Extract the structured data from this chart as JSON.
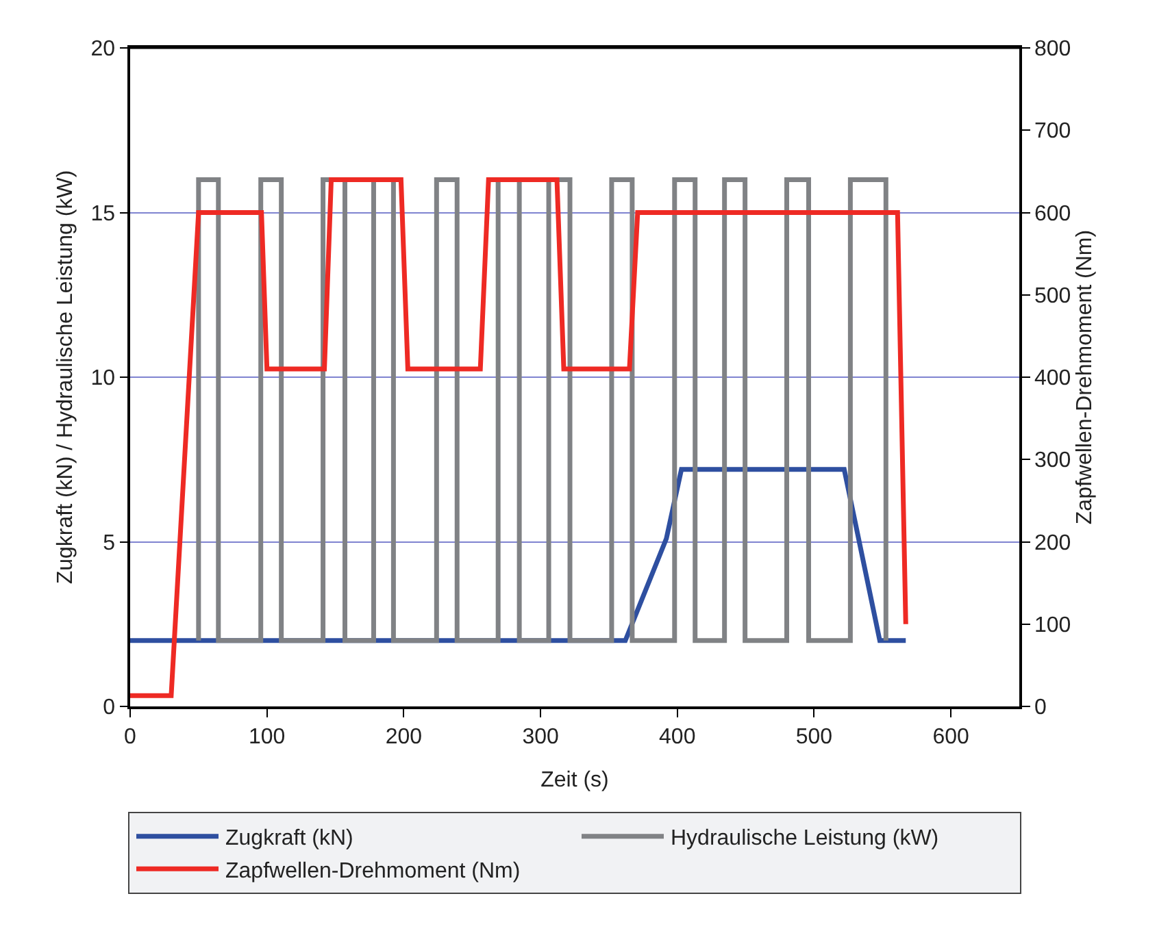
{
  "chart_data": {
    "type": "line",
    "xlabel": "Zeit (s)",
    "ylabel": "Zugkraft (kN) / Hydraulische Leistung (kW)",
    "y2label": "Zapfwellen-Drehmoment (Nm)",
    "xlim": [
      0,
      650
    ],
    "xticks": [
      0,
      100,
      200,
      300,
      400,
      500,
      600
    ],
    "ylim": [
      0,
      20
    ],
    "yticks": [
      0,
      5,
      10,
      15,
      20
    ],
    "y2lim": [
      0,
      800
    ],
    "y2ticks": [
      0,
      100,
      200,
      300,
      400,
      500,
      600,
      700,
      800
    ],
    "grid": "y",
    "legend": "bottom",
    "line_style": "solid",
    "marker": "none",
    "series": [
      {
        "name": "Zugkraft (kN)",
        "color": "#2e4fa0",
        "x": [
          0,
          362,
          392,
          403,
          522,
          548,
          567
        ],
        "values": [
          2,
          2,
          5.1,
          7.2,
          7.2,
          2,
          2
        ]
      },
      {
        "name": "Hydraulische Leistung (kW)",
        "color": "#808285",
        "x": [
          50,
          50,
          64.5,
          64.5,
          95.5,
          95.5,
          110.5,
          110.5,
          141,
          141,
          157,
          157,
          178,
          178,
          192.5,
          192.5,
          224,
          224,
          239,
          239,
          269,
          269,
          284.5,
          284.5,
          306,
          306,
          321.5,
          321.5,
          352,
          352,
          367,
          367,
          398,
          398,
          413,
          413,
          434.5,
          434.5,
          449.5,
          449.5,
          480,
          480,
          496,
          496,
          526.5,
          526.5,
          552.5,
          552.5
        ],
        "values": [
          2,
          16,
          16,
          2,
          2,
          16,
          16,
          2,
          2,
          16,
          16,
          2,
          2,
          16,
          16,
          2,
          2,
          16,
          16,
          2,
          2,
          16,
          16,
          2,
          2,
          16,
          16,
          2,
          2,
          16,
          16,
          2,
          2,
          16,
          16,
          2,
          2,
          16,
          16,
          2,
          2,
          16,
          16,
          2,
          2,
          16,
          16,
          2
        ]
      },
      {
        "name": "Zapfwellen-Drehmoment (Nm)",
        "color": "#ee2a24",
        "axis": "y2",
        "x": [
          0,
          30,
          50,
          96,
          100,
          142,
          147,
          198,
          203,
          256,
          262,
          312,
          317,
          365,
          371,
          561,
          567
        ],
        "values": [
          13,
          13,
          600,
          600,
          410,
          410,
          640,
          640,
          410,
          410,
          640,
          640,
          410,
          410,
          600,
          600,
          100
        ]
      }
    ]
  }
}
